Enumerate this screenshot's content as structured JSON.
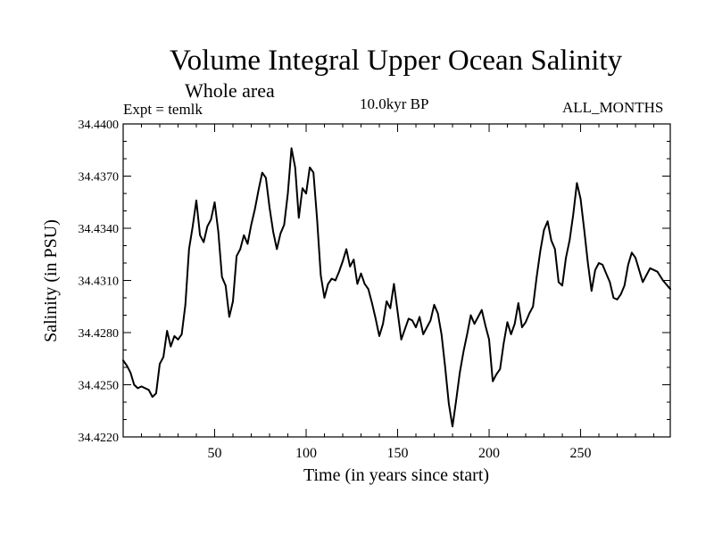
{
  "chart_data": {
    "type": "line",
    "title": "Volume Integral Upper Ocean Salinity",
    "subtitle": "Whole area",
    "experiment": "Expt = temlk",
    "period": "10.0kyr BP",
    "months": "ALL_MONTHS",
    "xlabel": "Time (in years since start)",
    "ylabel": "Salinity (in PSU)",
    "xlim": [
      0,
      299
    ],
    "ylim": [
      34.422,
      34.44
    ],
    "xticks": [
      50,
      100,
      150,
      200,
      250
    ],
    "xtick_labels": [
      "50",
      "100",
      "150",
      "200",
      "250"
    ],
    "yticks": [
      34.422,
      34.425,
      34.428,
      34.431,
      34.434,
      34.437,
      34.44
    ],
    "ytick_labels": [
      "34.4220",
      "34.4250",
      "34.4280",
      "34.4310",
      "34.4340",
      "34.4370",
      "34.4400"
    ],
    "color": "#000000",
    "series": [
      {
        "name": "Salinity",
        "x": [
          0,
          2,
          4,
          6,
          8,
          10,
          12,
          14,
          16,
          18,
          20,
          22,
          24,
          26,
          28,
          30,
          32,
          34,
          36,
          38,
          40,
          42,
          44,
          46,
          48,
          50,
          52,
          54,
          56,
          58,
          60,
          62,
          64,
          66,
          68,
          70,
          72,
          74,
          76,
          78,
          80,
          82,
          84,
          86,
          88,
          90,
          92,
          94,
          96,
          98,
          100,
          102,
          104,
          106,
          108,
          110,
          112,
          114,
          116,
          118,
          120,
          122,
          124,
          126,
          128,
          130,
          132,
          134,
          136,
          138,
          140,
          142,
          144,
          146,
          148,
          150,
          152,
          154,
          156,
          158,
          160,
          162,
          164,
          166,
          168,
          170,
          172,
          174,
          176,
          178,
          180,
          182,
          184,
          186,
          188,
          190,
          192,
          194,
          196,
          198,
          200,
          202,
          204,
          206,
          208,
          210,
          212,
          214,
          216,
          218,
          220,
          222,
          224,
          226,
          228,
          230,
          232,
          234,
          236,
          238,
          240,
          242,
          244,
          246,
          248,
          250,
          252,
          254,
          256,
          258,
          260,
          262,
          264,
          266,
          268,
          270,
          272,
          274,
          276,
          278,
          280,
          284,
          288,
          292,
          295,
          299
        ],
        "values": [
          34.4264,
          34.4261,
          34.4257,
          34.425,
          34.4248,
          34.4249,
          34.4248,
          34.4247,
          34.4243,
          34.4245,
          34.4262,
          34.4266,
          34.4281,
          34.4272,
          34.4278,
          34.4276,
          34.4279,
          34.4296,
          34.4328,
          34.4341,
          34.4356,
          34.4336,
          34.4332,
          34.4341,
          34.4345,
          34.4355,
          34.4338,
          34.4312,
          34.4307,
          34.4289,
          34.4298,
          34.4324,
          34.4328,
          34.4336,
          34.4331,
          34.4342,
          34.4351,
          34.4362,
          34.4372,
          34.4369,
          34.4352,
          34.4338,
          34.4328,
          34.4337,
          34.4342,
          34.436,
          34.4386,
          34.4375,
          34.4346,
          34.4363,
          34.436,
          34.4375,
          34.4372,
          34.4345,
          34.4313,
          34.43,
          34.4308,
          34.4311,
          34.431,
          34.4315,
          34.4321,
          34.4328,
          34.4318,
          34.4322,
          34.4308,
          34.4314,
          34.4308,
          34.4305,
          34.4297,
          34.4288,
          34.4278,
          34.4285,
          34.4298,
          34.4294,
          34.4308,
          34.4292,
          34.4276,
          34.4282,
          34.4288,
          34.4287,
          34.4283,
          34.4289,
          34.4279,
          34.4283,
          34.4287,
          34.4296,
          34.4291,
          34.4279,
          34.426,
          34.4239,
          34.4226,
          34.4241,
          34.4257,
          34.4269,
          34.4279,
          34.429,
          34.4285,
          34.4289,
          34.4293,
          34.4284,
          34.4276,
          34.4252,
          34.4256,
          34.4259,
          34.4274,
          34.4286,
          34.4279,
          34.4285,
          34.4297,
          34.4283,
          34.4286,
          34.4291,
          34.4295,
          34.4312,
          34.4327,
          34.4339,
          34.4344,
          34.4333,
          34.4328,
          34.4309,
          34.4307,
          34.4323,
          34.4333,
          34.4348,
          34.4366,
          34.4357,
          34.4339,
          34.432,
          34.4304,
          34.4316,
          34.432,
          34.4319,
          34.4314,
          34.4309,
          34.43,
          34.4299,
          34.4302,
          34.4307,
          34.4319,
          34.4326,
          34.4323,
          34.4309,
          34.4317,
          34.4315,
          34.431,
          34.4305
        ]
      }
    ]
  }
}
